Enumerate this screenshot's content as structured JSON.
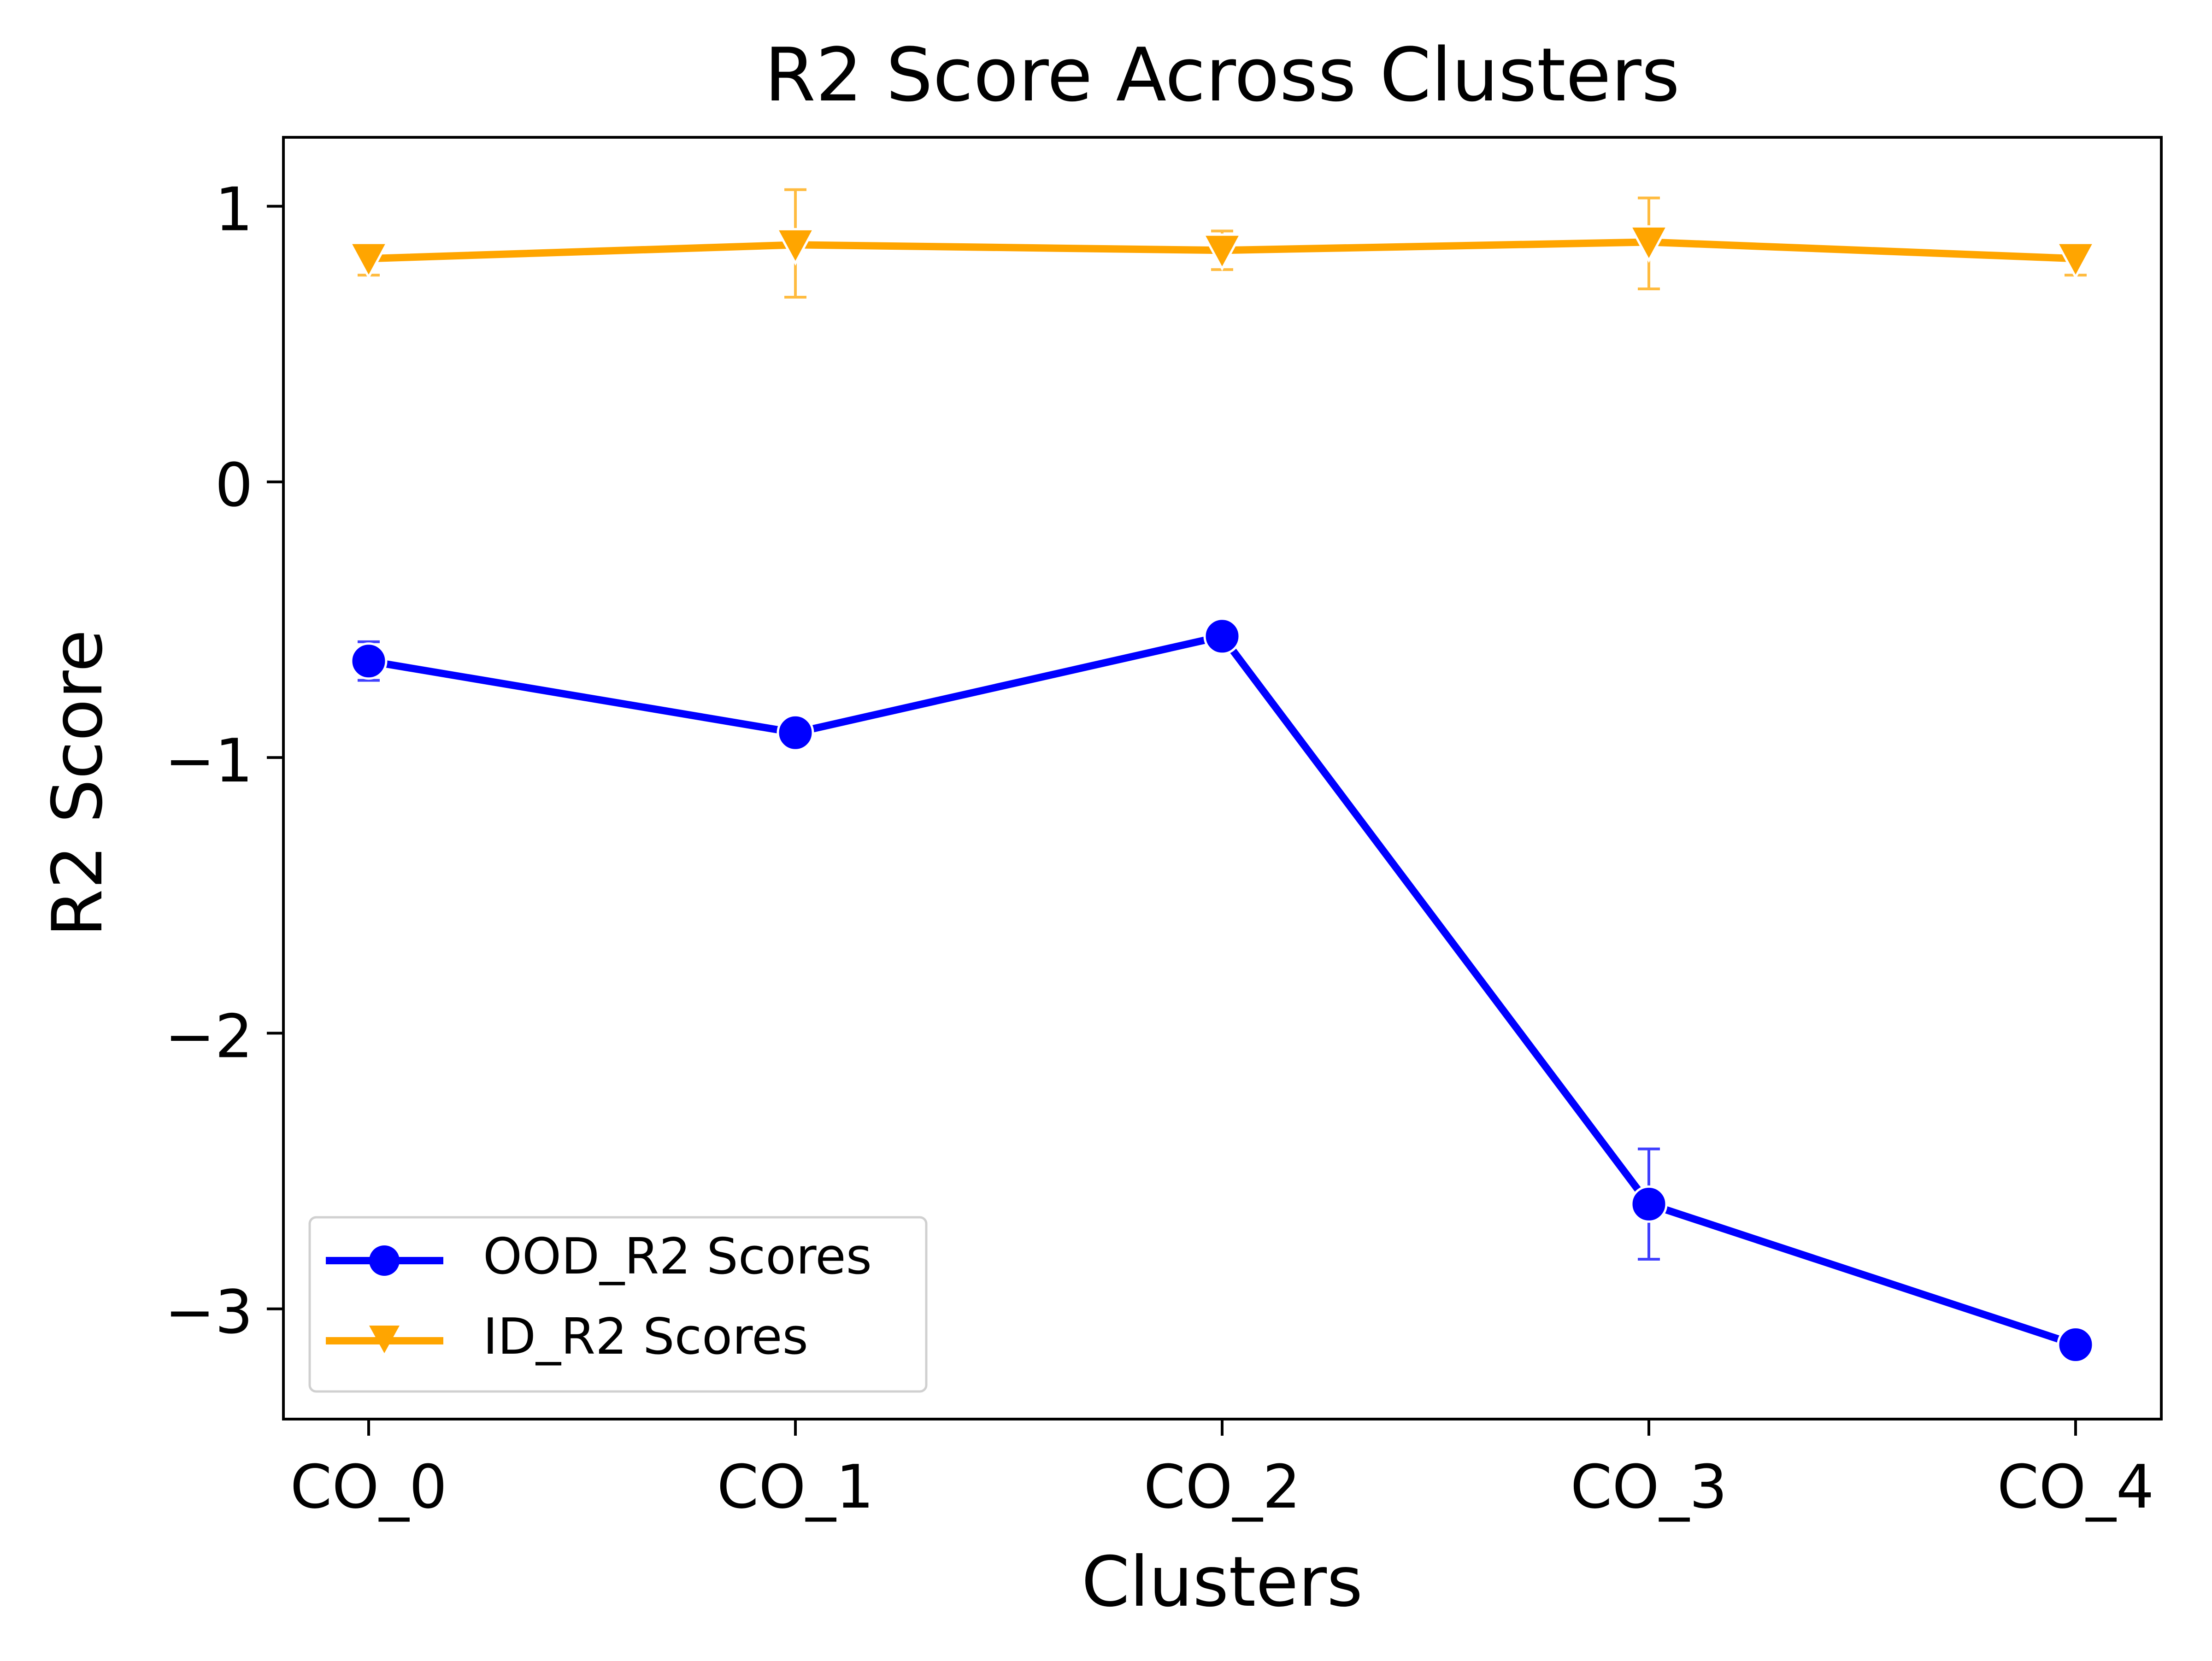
{
  "chart_data": {
    "type": "line",
    "title": "R2 Score Across Clusters",
    "xlabel": "Clusters",
    "ylabel": "R2 Score",
    "categories": [
      "CO_0",
      "CO_1",
      "CO_2",
      "CO_3",
      "CO_4"
    ],
    "ylim": [
      -3.4,
      1.25
    ],
    "yticks": [
      1,
      0,
      -1,
      -2,
      -3
    ],
    "ytick_labels": [
      "1",
      "0",
      "−1",
      "−2",
      "−3"
    ],
    "grid": false,
    "legend_position": "lower-left",
    "series": [
      {
        "name": "OOD_R2 Scores",
        "color": "#0000ff",
        "marker": "circle",
        "values": [
          -0.65,
          -0.91,
          -0.56,
          -2.62,
          -3.13
        ],
        "error_low": [
          -0.72,
          null,
          null,
          -2.82,
          null
        ],
        "error_high": [
          -0.58,
          null,
          null,
          -2.42,
          null
        ]
      },
      {
        "name": "ID_R2 Scores",
        "color": "#ffa500",
        "marker": "triangle-down",
        "values": [
          0.81,
          0.86,
          0.84,
          0.87,
          0.81
        ],
        "error_low": [
          0.75,
          0.67,
          0.77,
          0.7,
          0.75
        ],
        "error_high": [
          0.83,
          1.06,
          0.91,
          1.03,
          0.83
        ]
      }
    ]
  }
}
